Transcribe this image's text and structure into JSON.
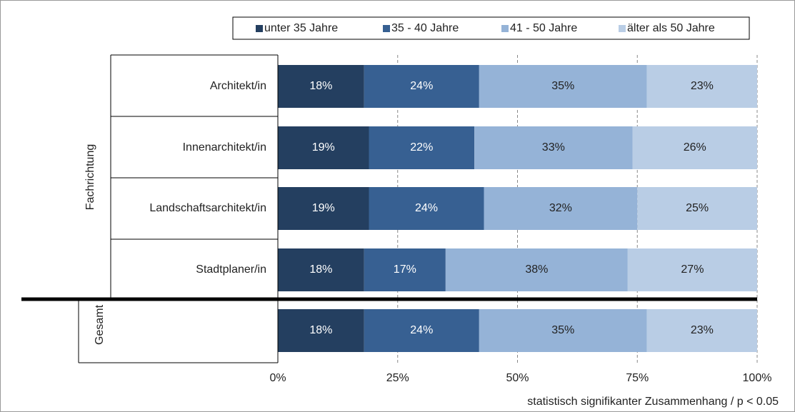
{
  "chart_data": {
    "type": "stacked-bar-horizontal",
    "categories": [
      "Architekt/in",
      "Innenarchitekt/in",
      "Landschaftsarchitekt/in",
      "Stadtplaner/in",
      null
    ],
    "group_labels": [
      "Fachrichtung",
      "Gesamt"
    ],
    "series": [
      {
        "name": "unter 35 Jahre",
        "color": "#243f60",
        "values": [
          18,
          19,
          19,
          18,
          18
        ],
        "value_labels": [
          "18%",
          "19%",
          "19%",
          "18%",
          "18%"
        ]
      },
      {
        "name": "35 - 40 Jahre",
        "color": "#376092",
        "values": [
          24,
          22,
          24,
          17,
          24
        ],
        "value_labels": [
          "24%",
          "22%",
          "24%",
          "17%",
          "24%"
        ]
      },
      {
        "name": "41 - 50 Jahre",
        "color": "#95b3d7",
        "values": [
          35,
          33,
          32,
          38,
          35
        ],
        "value_labels": [
          "35%",
          "33%",
          "32%",
          "38%",
          "35%"
        ]
      },
      {
        "name": "älter als 50 Jahre",
        "color": "#b9cde5",
        "values": [
          23,
          26,
          25,
          27,
          23
        ],
        "value_labels": [
          "23%",
          "26%",
          "25%",
          "27%",
          "23%"
        ]
      }
    ],
    "xlim": [
      0,
      100
    ],
    "xticks": [
      {
        "value": 0,
        "label": "0%"
      },
      {
        "value": 25,
        "label": "25%"
      },
      {
        "value": 50,
        "label": "50%"
      },
      {
        "value": 75,
        "label": "75%"
      },
      {
        "value": 100,
        "label": "100%"
      }
    ],
    "grid": true,
    "legend": "top",
    "note": "statistisch signifikanter Zusammenhang / p < 0.05"
  }
}
